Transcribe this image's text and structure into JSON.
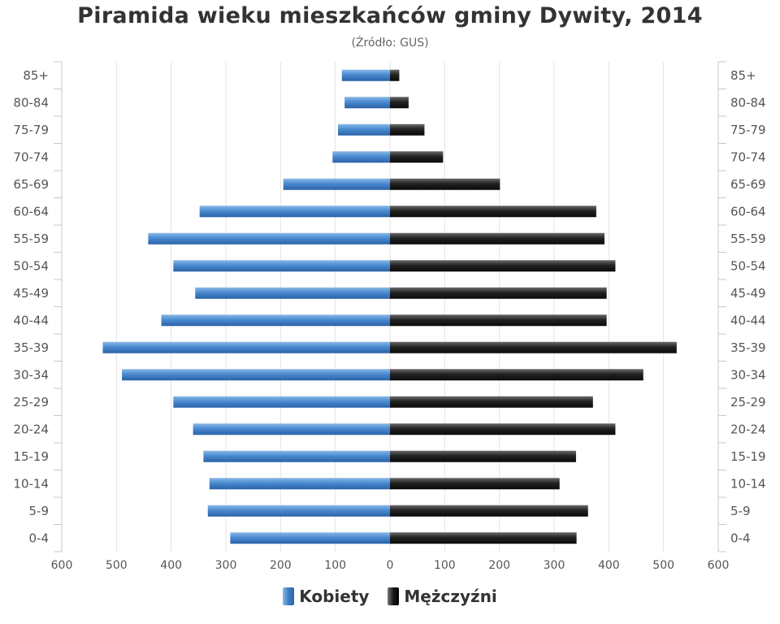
{
  "chart_data": {
    "type": "bar",
    "orientation": "horizontal-population-pyramid",
    "title": "Piramida wieku mieszkańców gminy Dywity, 2014",
    "subtitle": "(Źródło: GUS)",
    "categories": [
      "85+",
      "80-84",
      "75-79",
      "70-74",
      "65-69",
      "60-64",
      "55-59",
      "50-54",
      "45-49",
      "40-44",
      "35-39",
      "30-34",
      "25-29",
      "20-24",
      "15-19",
      "10-14",
      "5-9",
      "0-4"
    ],
    "series": [
      {
        "name": "Kobiety",
        "color": "#3f7fc4",
        "side": "left",
        "values": [
          88,
          83,
          95,
          105,
          195,
          348,
          442,
          396,
          356,
          418,
          525,
          490,
          396,
          360,
          341,
          330,
          333,
          292
        ]
      },
      {
        "name": "Mężczyźni",
        "color": "#1a1a1a",
        "side": "right",
        "values": [
          17,
          34,
          63,
          97,
          201,
          377,
          392,
          412,
          396,
          396,
          524,
          463,
          371,
          412,
          340,
          310,
          362,
          341
        ]
      }
    ],
    "xticks": [
      600,
      500,
      400,
      300,
      200,
      100,
      0,
      100,
      200,
      300,
      400,
      500,
      600
    ],
    "xlim": [
      -600,
      600
    ],
    "grid": true,
    "legend_position": "bottom"
  }
}
